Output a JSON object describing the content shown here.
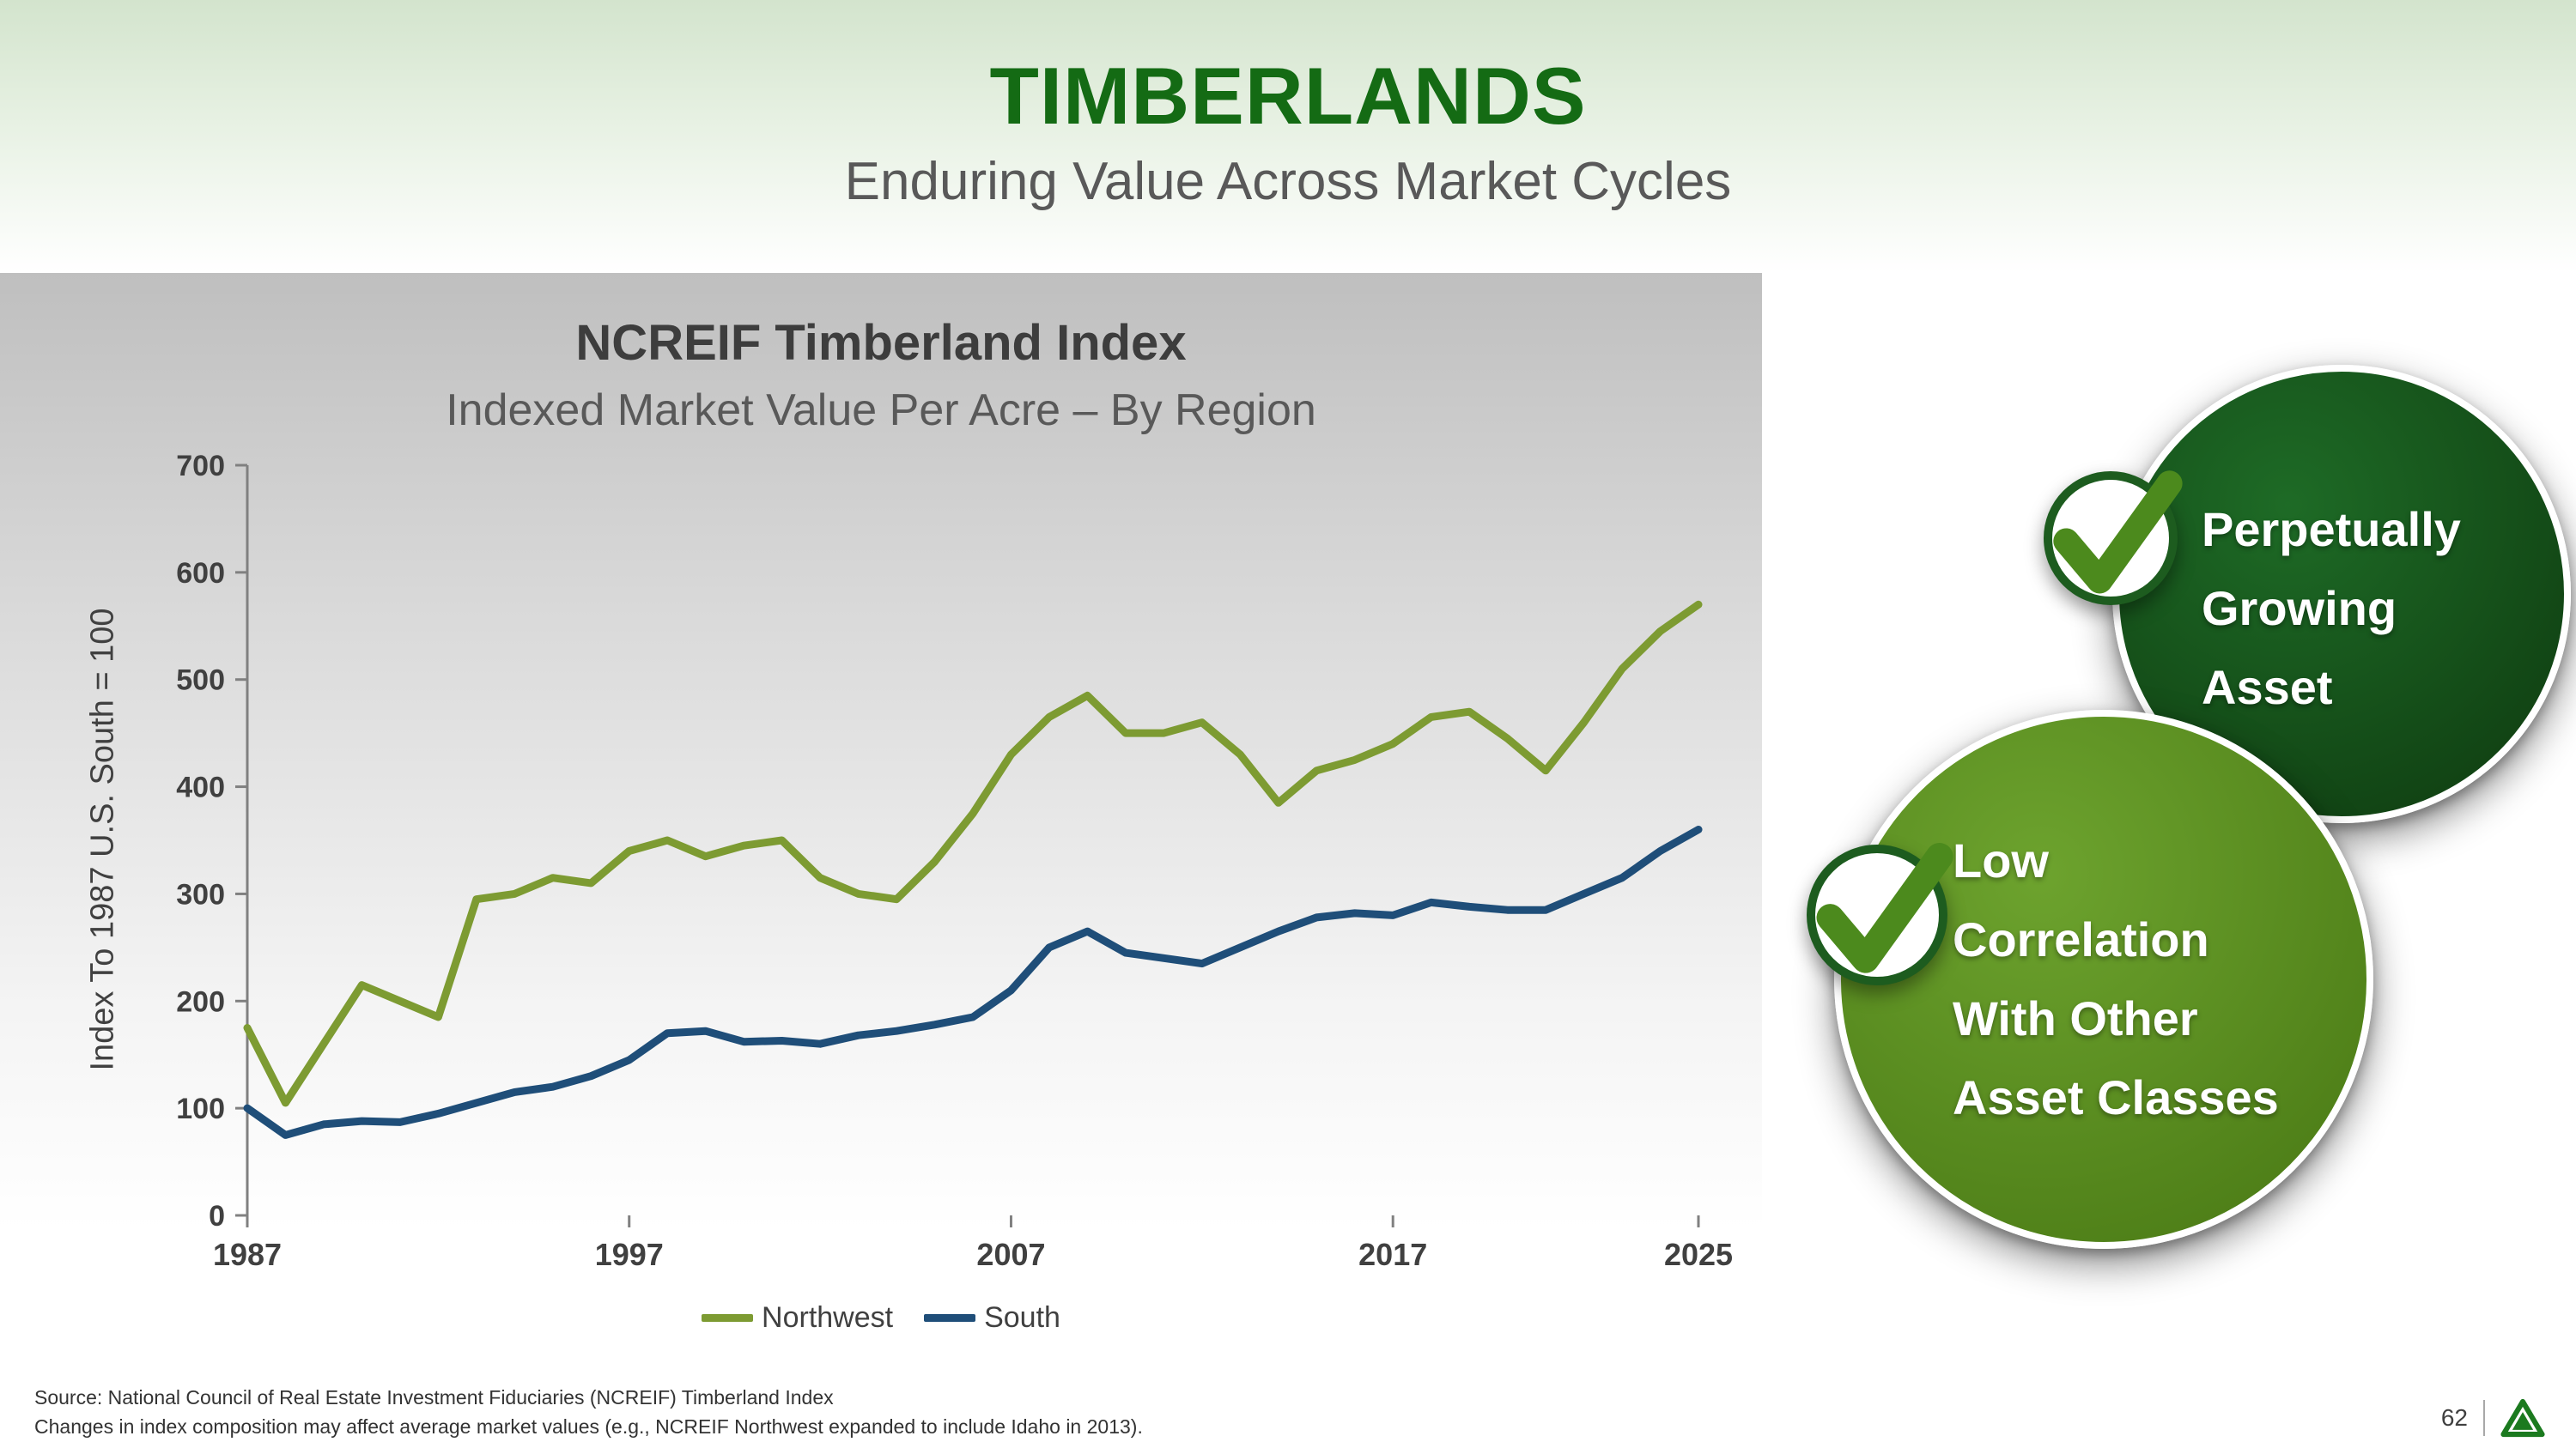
{
  "slide": {
    "title": "TIMBERLANDS",
    "subtitle": "Enduring Value Across Market Cycles"
  },
  "chart_data": {
    "type": "line",
    "title": "NCREIF Timberland Index",
    "subtitle": "Indexed Market Value Per Acre – By Region",
    "xlabel": "",
    "ylabel": "Index To 1987 U.S. South = 100",
    "ylim": [
      0,
      700
    ],
    "yticks": [
      0,
      100,
      200,
      300,
      400,
      500,
      600,
      700
    ],
    "xticks": [
      1987,
      1997,
      2007,
      2017,
      2025
    ],
    "grid": false,
    "legend_position": "bottom",
    "x": [
      1987,
      1988,
      1989,
      1990,
      1991,
      1992,
      1993,
      1994,
      1995,
      1996,
      1997,
      1998,
      1999,
      2000,
      2001,
      2002,
      2003,
      2004,
      2005,
      2006,
      2007,
      2008,
      2009,
      2010,
      2011,
      2012,
      2013,
      2014,
      2015,
      2016,
      2017,
      2018,
      2019,
      2020,
      2021,
      2022,
      2023,
      2024,
      2025
    ],
    "series": [
      {
        "name": "Northwest",
        "color": "#7d9b32",
        "values": [
          175,
          105,
          160,
          215,
          200,
          185,
          295,
          300,
          315,
          310,
          340,
          350,
          335,
          345,
          350,
          315,
          300,
          295,
          330,
          375,
          430,
          465,
          485,
          450,
          450,
          460,
          430,
          385,
          415,
          425,
          440,
          465,
          470,
          445,
          415,
          460,
          510,
          545,
          570
        ]
      },
      {
        "name": "South",
        "color": "#1f4e79",
        "values": [
          100,
          75,
          85,
          88,
          87,
          95,
          105,
          115,
          120,
          130,
          145,
          170,
          172,
          162,
          163,
          160,
          168,
          172,
          178,
          185,
          210,
          250,
          265,
          245,
          240,
          235,
          250,
          265,
          278,
          282,
          280,
          292,
          288,
          285,
          285,
          300,
          315,
          340,
          360
        ]
      }
    ]
  },
  "badges": [
    {
      "text": "Perpetually\nGrowing\nAsset",
      "color_center": "#1e6b26",
      "color_edge": "#0f3d11"
    },
    {
      "text": "Low\nCorrelation\nWith Other\nAsset Classes",
      "color_center": "#6da32e",
      "color_edge": "#4a7a15"
    }
  ],
  "colors": {
    "title_green": "#146b14",
    "check_mark": "#4c8a1d",
    "check_ring": "#1d5c1f",
    "northwest_line": "#7d9b32",
    "south_line": "#1f4e79"
  },
  "footer": {
    "source_line1": "Source: National Council of Real Estate Investment Fiduciaries (NCREIF) Timberland Index",
    "source_line2": "Changes in index composition may affect average market values (e.g., NCREIF Northwest expanded to include Idaho in 2013).",
    "page_number": "62"
  }
}
